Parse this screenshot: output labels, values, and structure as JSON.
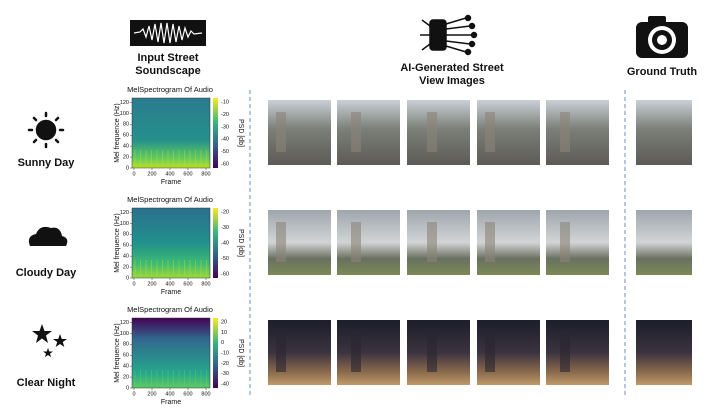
{
  "header": {
    "input": [
      "Input Street",
      "Soundscape"
    ],
    "generated": [
      "AI-Generated Street",
      "View Images"
    ],
    "truth": "Ground Truth"
  },
  "rows": [
    {
      "label": "Sunny Day",
      "spectrogram": {
        "title": "MelSpectrogram Of Audio",
        "ylabel": "Mel frequence (Hz)",
        "xlabel": "Frame",
        "cbar_label": "PSD [db]",
        "yticks": [
          0,
          20,
          40,
          60,
          80,
          100,
          120
        ],
        "xticks": [
          0,
          200,
          400,
          600,
          800
        ],
        "cbar_ticks": [
          -10,
          -20,
          -30,
          -40,
          -50,
          -60
        ]
      }
    },
    {
      "label": "Cloudy Day",
      "spectrogram": {
        "title": "MelSpectrogram Of Audio",
        "ylabel": "Mel frequence (Hz)",
        "xlabel": "Frame",
        "cbar_label": "PSD [db]",
        "yticks": [
          0,
          20,
          40,
          60,
          80,
          100,
          120
        ],
        "xticks": [
          0,
          200,
          400,
          600,
          800
        ],
        "cbar_ticks": [
          -20,
          -30,
          -40,
          -50,
          -60
        ]
      }
    },
    {
      "label": "Clear Night",
      "spectrogram": {
        "title": "MelSpectrogram Of Audio",
        "ylabel": "Mel frequence (Hz)",
        "xlabel": "Frame",
        "cbar_label": "PSD [db]",
        "yticks": [
          0,
          20,
          40,
          60,
          80,
          100,
          120
        ],
        "xticks": [
          0,
          200,
          400,
          600,
          800
        ],
        "cbar_ticks": [
          20,
          10,
          0,
          -10,
          -20,
          -30,
          -40
        ]
      }
    }
  ]
}
